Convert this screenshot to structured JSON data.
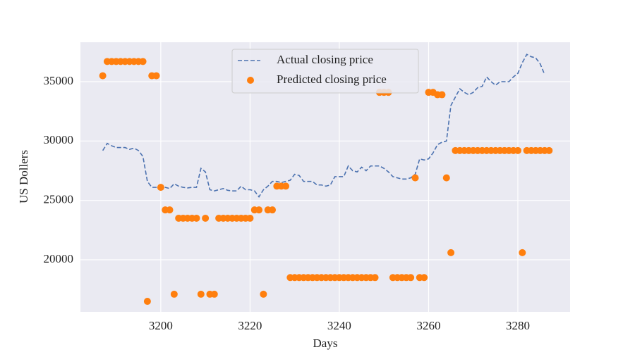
{
  "chart_data": {
    "type": "line_scatter",
    "xlabel": "Days",
    "ylabel": "US Dollers",
    "xlim": [
      3182,
      3291.7
    ],
    "ylim": [
      15613,
      38320
    ],
    "xticks": [
      3200,
      3220,
      3240,
      3260,
      3280
    ],
    "yticks": [
      20000,
      25000,
      30000,
      35000
    ],
    "grid": true,
    "legend": "upper center",
    "background": "#eaeaf2",
    "series": [
      {
        "name": "Actual closing price",
        "kind": "line",
        "color": "#4c72b0",
        "x": [
          3187,
          3188,
          3189,
          3190,
          3191,
          3192,
          3193,
          3194,
          3195,
          3196,
          3197,
          3198,
          3199,
          3200,
          3201,
          3202,
          3203,
          3204,
          3205,
          3206,
          3207,
          3208,
          3209,
          3210,
          3211,
          3212,
          3213,
          3214,
          3215,
          3216,
          3217,
          3218,
          3219,
          3220,
          3221,
          3222,
          3223,
          3224,
          3225,
          3226,
          3227,
          3228,
          3229,
          3230,
          3231,
          3232,
          3233,
          3234,
          3235,
          3236,
          3237,
          3238,
          3239,
          3240,
          3241,
          3242,
          3243,
          3244,
          3245,
          3246,
          3247,
          3248,
          3249,
          3250,
          3251,
          3252,
          3253,
          3254,
          3255,
          3256,
          3257,
          3258,
          3259,
          3260,
          3261,
          3262,
          3263,
          3264,
          3265,
          3266,
          3267,
          3268,
          3269,
          3270,
          3271,
          3272,
          3273,
          3274,
          3275,
          3276,
          3277,
          3278,
          3279,
          3280,
          3281,
          3282,
          3283,
          3284,
          3285,
          3286
        ],
        "values": [
          29200,
          29800,
          29600,
          29450,
          29450,
          29450,
          29300,
          29400,
          29200,
          28700,
          26600,
          26100,
          26100,
          26200,
          26100,
          26000,
          26400,
          26200,
          26100,
          26050,
          26100,
          26100,
          27700,
          27400,
          25900,
          25800,
          25900,
          26000,
          25850,
          25800,
          25800,
          26200,
          25900,
          25900,
          25800,
          25300,
          25900,
          26200,
          26600,
          26600,
          26500,
          26600,
          26700,
          27200,
          27100,
          26600,
          26600,
          26600,
          26300,
          26300,
          26200,
          26300,
          27000,
          27000,
          27000,
          27900,
          27500,
          27400,
          27800,
          27500,
          27900,
          27900,
          27900,
          27700,
          27400,
          27000,
          26900,
          26800,
          26800,
          26900,
          27200,
          28500,
          28400,
          28500,
          29000,
          29700,
          29900,
          30000,
          33000,
          33700,
          34400,
          34100,
          33900,
          34100,
          34500,
          34600,
          35400,
          35000,
          34700,
          35000,
          35000,
          35000,
          35400,
          35700,
          36600,
          37300,
          37100,
          37000,
          36500,
          35600
        ]
      },
      {
        "name": "Predicted closing price",
        "kind": "scatter",
        "color": "#ff7f0e",
        "x": [
          3187,
          3188,
          3189,
          3190,
          3191,
          3192,
          3193,
          3194,
          3195,
          3196,
          3197,
          3198,
          3199,
          3200,
          3201,
          3202,
          3203,
          3204,
          3205,
          3206,
          3207,
          3208,
          3209,
          3210,
          3211,
          3212,
          3213,
          3214,
          3215,
          3216,
          3217,
          3218,
          3219,
          3220,
          3221,
          3222,
          3223,
          3224,
          3225,
          3226,
          3227,
          3228,
          3229,
          3230,
          3231,
          3232,
          3233,
          3234,
          3235,
          3236,
          3237,
          3238,
          3239,
          3240,
          3241,
          3242,
          3243,
          3244,
          3245,
          3246,
          3247,
          3248,
          3249,
          3250,
          3251,
          3252,
          3253,
          3254,
          3255,
          3256,
          3257,
          3258,
          3259,
          3260,
          3261,
          3262,
          3263,
          3264,
          3265,
          3266,
          3267,
          3268,
          3269,
          3270,
          3271,
          3272,
          3273,
          3274,
          3275,
          3276,
          3277,
          3278,
          3279,
          3280,
          3281,
          3282,
          3283,
          3284,
          3285,
          3286,
          3287
        ],
        "values": [
          35500,
          36700,
          36700,
          36700,
          36700,
          36700,
          36700,
          36700,
          36700,
          36700,
          16500,
          35500,
          35500,
          26100,
          24200,
          24200,
          17100,
          23500,
          23500,
          23500,
          23500,
          23500,
          17100,
          23500,
          17100,
          17100,
          23500,
          23500,
          23500,
          23500,
          23500,
          23500,
          23500,
          23500,
          24200,
          24200,
          17100,
          24200,
          24200,
          26200,
          26200,
          26200,
          18500,
          18500,
          18500,
          18500,
          18500,
          18500,
          18500,
          18500,
          18500,
          18500,
          18500,
          18500,
          18500,
          18500,
          18500,
          18500,
          18500,
          18500,
          18500,
          18500,
          34100,
          34100,
          34100,
          18500,
          18500,
          18500,
          18500,
          18500,
          26900,
          18500,
          18500,
          34100,
          34100,
          33900,
          33900,
          26900,
          20600,
          29200,
          29200,
          29200,
          29200,
          29200,
          29200,
          29200,
          29200,
          29200,
          29200,
          29200,
          29200,
          29200,
          29200,
          29200,
          20600,
          29200,
          29200,
          29200,
          29200,
          29200,
          29200
        ]
      }
    ]
  }
}
